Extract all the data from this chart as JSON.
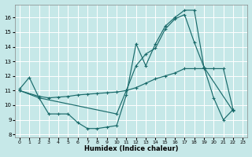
{
  "background_color": "#c6e8e8",
  "line_color": "#1a6b6b",
  "grid_color": "#ffffff",
  "xlabel": "Humidex (Indice chaleur)",
  "xlim": [
    -0.5,
    23.5
  ],
  "ylim": [
    7.8,
    16.9
  ],
  "yticks": [
    8,
    9,
    10,
    11,
    12,
    13,
    14,
    15,
    16
  ],
  "xticks": [
    0,
    1,
    2,
    3,
    4,
    5,
    6,
    7,
    8,
    9,
    10,
    11,
    12,
    13,
    14,
    15,
    16,
    17,
    18,
    19,
    20,
    21,
    22,
    23
  ],
  "line1": [
    [
      0,
      11.1
    ],
    [
      1,
      11.9
    ],
    [
      2,
      10.5
    ],
    [
      3,
      9.4
    ],
    [
      4,
      9.4
    ],
    [
      5,
      9.4
    ],
    [
      6,
      8.8
    ],
    [
      7,
      8.4
    ],
    [
      8,
      8.4
    ],
    [
      9,
      8.5
    ],
    [
      10,
      8.6
    ],
    [
      11,
      10.7
    ],
    [
      12,
      14.2
    ],
    [
      13,
      12.7
    ],
    [
      14,
      14.2
    ],
    [
      15,
      15.4
    ],
    [
      16,
      16.0
    ],
    [
      17,
      16.5
    ],
    [
      18,
      16.5
    ],
    [
      19,
      12.6
    ],
    [
      20,
      10.5
    ],
    [
      21,
      9.0
    ],
    [
      22,
      9.7
    ]
  ],
  "line2": [
    [
      0,
      11.0
    ],
    [
      2,
      10.5
    ],
    [
      10,
      9.4
    ],
    [
      11,
      11.0
    ],
    [
      12,
      12.7
    ],
    [
      13,
      13.5
    ],
    [
      14,
      13.9
    ],
    [
      15,
      15.2
    ],
    [
      16,
      15.9
    ],
    [
      17,
      16.2
    ],
    [
      18,
      14.3
    ],
    [
      19,
      12.6
    ],
    [
      22,
      9.6
    ]
  ],
  "line3": [
    [
      0,
      11.0
    ],
    [
      2,
      10.6
    ],
    [
      3,
      10.5
    ],
    [
      4,
      10.55
    ],
    [
      5,
      10.6
    ],
    [
      6,
      10.7
    ],
    [
      7,
      10.75
    ],
    [
      8,
      10.8
    ],
    [
      9,
      10.85
    ],
    [
      10,
      10.9
    ],
    [
      11,
      11.0
    ],
    [
      12,
      11.2
    ],
    [
      13,
      11.5
    ],
    [
      14,
      11.8
    ],
    [
      15,
      12.0
    ],
    [
      16,
      12.2
    ],
    [
      17,
      12.5
    ],
    [
      18,
      12.5
    ],
    [
      19,
      12.5
    ],
    [
      20,
      12.5
    ],
    [
      21,
      12.5
    ],
    [
      22,
      9.7
    ]
  ]
}
